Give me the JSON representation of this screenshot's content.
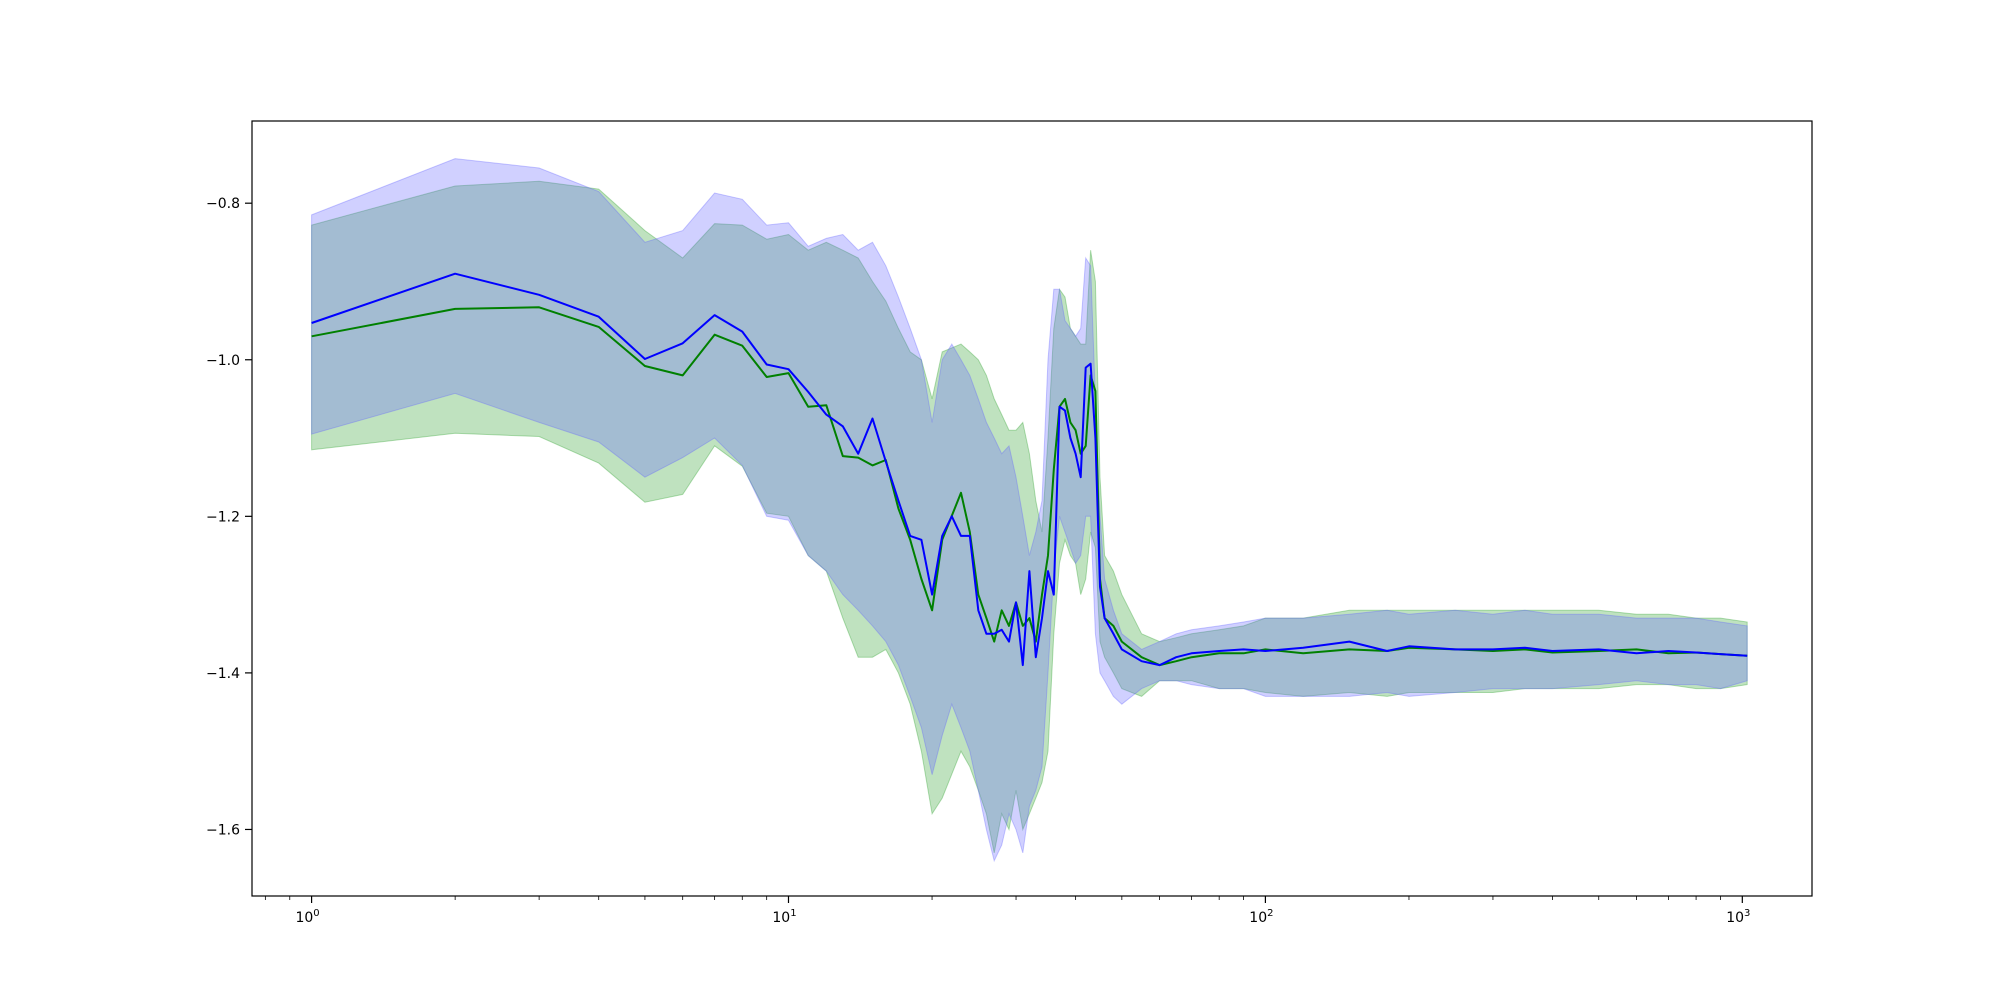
{
  "chart_data": {
    "type": "line",
    "title": "",
    "xlabel": "",
    "ylabel": "",
    "xscale": "log",
    "xlim": [
      0.75,
      1400
    ],
    "ylim": [
      -1.685,
      -0.695
    ],
    "grid": false,
    "legend": "none",
    "x_ticks": [
      {
        "value": 1,
        "base": "10",
        "exp": "0"
      },
      {
        "value": 10,
        "base": "10",
        "exp": "1"
      },
      {
        "value": 100,
        "base": "10",
        "exp": "2"
      },
      {
        "value": 1000,
        "base": "10",
        "exp": "3"
      }
    ],
    "y_ticks": [
      {
        "value": -0.8,
        "label": "−0.8"
      },
      {
        "value": -1.0,
        "label": "−1.0"
      },
      {
        "value": -1.2,
        "label": "−1.2"
      },
      {
        "value": -1.4,
        "label": "−1.4"
      },
      {
        "value": -1.6,
        "label": "−1.6"
      }
    ],
    "series": [
      {
        "color": "#008000",
        "band_color": "#2ca02c",
        "x": [
          1,
          2,
          3,
          4,
          5,
          6,
          7,
          8,
          9,
          10,
          11,
          12,
          13,
          14,
          15,
          16,
          17,
          18,
          19,
          20,
          21,
          23,
          24,
          25,
          26,
          27,
          28,
          29,
          30,
          31,
          32,
          33,
          34,
          35,
          36,
          37,
          38,
          39,
          40,
          41,
          42,
          43,
          44,
          45,
          46,
          48,
          50,
          55,
          60,
          65,
          70,
          80,
          90,
          100,
          120,
          150,
          180,
          200,
          250,
          300,
          350,
          400,
          500,
          600,
          700,
          800,
          900,
          1024
        ],
        "y": [
          -0.97,
          -0.935,
          -0.933,
          -0.958,
          -1.008,
          -1.02,
          -0.968,
          -0.982,
          -1.022,
          -1.017,
          -1.06,
          -1.058,
          -1.123,
          -1.125,
          -1.135,
          -1.128,
          -1.19,
          -1.23,
          -1.28,
          -1.32,
          -1.23,
          -1.17,
          -1.22,
          -1.3,
          -1.33,
          -1.36,
          -1.32,
          -1.34,
          -1.31,
          -1.34,
          -1.33,
          -1.36,
          -1.3,
          -1.25,
          -1.14,
          -1.06,
          -1.05,
          -1.08,
          -1.09,
          -1.12,
          -1.11,
          -1.02,
          -1.04,
          -1.28,
          -1.33,
          -1.34,
          -1.36,
          -1.38,
          -1.39,
          -1.385,
          -1.38,
          -1.375,
          -1.375,
          -1.37,
          -1.375,
          -1.37,
          -1.372,
          -1.368,
          -1.37,
          -1.372,
          -1.37,
          -1.374,
          -1.372,
          -1.37,
          -1.375,
          -1.374,
          -1.376,
          -1.378
        ],
        "upper": [
          -0.828,
          -0.778,
          -0.772,
          -0.782,
          -0.835,
          -0.87,
          -0.826,
          -0.828,
          -0.846,
          -0.84,
          -0.86,
          -0.85,
          -0.86,
          -0.87,
          -0.9,
          -0.925,
          -0.96,
          -0.99,
          -1.0,
          -1.05,
          -0.99,
          -0.98,
          -0.99,
          -1.0,
          -1.02,
          -1.05,
          -1.07,
          -1.09,
          -1.09,
          -1.08,
          -1.12,
          -1.18,
          -1.22,
          -1.1,
          -0.96,
          -0.91,
          -0.92,
          -0.96,
          -0.97,
          -0.98,
          -0.98,
          -0.86,
          -0.9,
          -1.15,
          -1.25,
          -1.27,
          -1.3,
          -1.35,
          -1.36,
          -1.355,
          -1.35,
          -1.345,
          -1.34,
          -1.33,
          -1.33,
          -1.32,
          -1.32,
          -1.32,
          -1.32,
          -1.32,
          -1.32,
          -1.32,
          -1.32,
          -1.325,
          -1.325,
          -1.33,
          -1.33,
          -1.335
        ],
        "lower": [
          -1.115,
          -1.094,
          -1.098,
          -1.132,
          -1.182,
          -1.172,
          -1.11,
          -1.136,
          -1.196,
          -1.2,
          -1.25,
          -1.27,
          -1.33,
          -1.38,
          -1.38,
          -1.37,
          -1.4,
          -1.44,
          -1.5,
          -1.58,
          -1.56,
          -1.5,
          -1.52,
          -1.55,
          -1.58,
          -1.63,
          -1.58,
          -1.6,
          -1.55,
          -1.6,
          -1.58,
          -1.56,
          -1.54,
          -1.5,
          -1.35,
          -1.26,
          -1.23,
          -1.25,
          -1.26,
          -1.3,
          -1.28,
          -1.22,
          -1.24,
          -1.36,
          -1.38,
          -1.4,
          -1.42,
          -1.43,
          -1.41,
          -1.41,
          -1.41,
          -1.42,
          -1.42,
          -1.425,
          -1.43,
          -1.425,
          -1.43,
          -1.425,
          -1.425,
          -1.425,
          -1.42,
          -1.42,
          -1.42,
          -1.415,
          -1.415,
          -1.42,
          -1.42,
          -1.415
        ]
      },
      {
        "color": "#0000ff",
        "band_color": "#6464ff",
        "x": [
          1,
          2,
          3,
          4,
          5,
          6,
          7,
          8,
          9,
          10,
          11,
          12,
          13,
          14,
          15,
          16,
          17,
          18,
          19,
          20,
          21,
          22,
          23,
          24,
          25,
          26,
          27,
          28,
          29,
          30,
          31,
          32,
          33,
          34,
          35,
          36,
          37,
          38,
          39,
          40,
          41,
          42,
          43,
          44,
          45,
          46,
          48,
          50,
          55,
          60,
          65,
          70,
          80,
          90,
          100,
          120,
          150,
          180,
          200,
          250,
          300,
          350,
          400,
          500,
          600,
          700,
          800,
          900,
          1024
        ],
        "y": [
          -0.953,
          -0.89,
          -0.917,
          -0.945,
          -0.999,
          -0.979,
          -0.943,
          -0.964,
          -1.006,
          -1.012,
          -1.041,
          -1.07,
          -1.085,
          -1.12,
          -1.075,
          -1.13,
          -1.18,
          -1.225,
          -1.23,
          -1.3,
          -1.225,
          -1.2,
          -1.225,
          -1.225,
          -1.32,
          -1.35,
          -1.35,
          -1.345,
          -1.36,
          -1.31,
          -1.39,
          -1.27,
          -1.38,
          -1.33,
          -1.27,
          -1.3,
          -1.06,
          -1.065,
          -1.1,
          -1.12,
          -1.15,
          -1.01,
          -1.005,
          -1.1,
          -1.29,
          -1.33,
          -1.35,
          -1.37,
          -1.385,
          -1.39,
          -1.38,
          -1.375,
          -1.372,
          -1.37,
          -1.372,
          -1.368,
          -1.36,
          -1.372,
          -1.366,
          -1.37,
          -1.37,
          -1.368,
          -1.372,
          -1.37,
          -1.375,
          -1.372,
          -1.374,
          -1.376,
          -1.378
        ],
        "upper": [
          -0.815,
          -0.743,
          -0.755,
          -0.785,
          -0.85,
          -0.835,
          -0.787,
          -0.795,
          -0.828,
          -0.825,
          -0.855,
          -0.845,
          -0.84,
          -0.86,
          -0.85,
          -0.88,
          -0.92,
          -0.96,
          -1.0,
          -1.08,
          -1.0,
          -0.98,
          -1.0,
          -1.02,
          -1.05,
          -1.08,
          -1.1,
          -1.12,
          -1.11,
          -1.15,
          -1.2,
          -1.25,
          -1.22,
          -1.18,
          -1.0,
          -0.91,
          -0.91,
          -0.95,
          -0.96,
          -0.97,
          -0.96,
          -0.87,
          -0.88,
          -1.05,
          -1.2,
          -1.28,
          -1.32,
          -1.35,
          -1.37,
          -1.36,
          -1.35,
          -1.345,
          -1.34,
          -1.335,
          -1.33,
          -1.33,
          -1.325,
          -1.32,
          -1.325,
          -1.32,
          -1.325,
          -1.32,
          -1.325,
          -1.325,
          -1.33,
          -1.33,
          -1.33,
          -1.335,
          -1.34
        ],
        "lower": [
          -1.095,
          -1.043,
          -1.08,
          -1.105,
          -1.15,
          -1.125,
          -1.1,
          -1.135,
          -1.2,
          -1.205,
          -1.25,
          -1.27,
          -1.3,
          -1.32,
          -1.34,
          -1.36,
          -1.39,
          -1.43,
          -1.47,
          -1.53,
          -1.48,
          -1.44,
          -1.47,
          -1.5,
          -1.55,
          -1.6,
          -1.64,
          -1.62,
          -1.58,
          -1.6,
          -1.63,
          -1.57,
          -1.55,
          -1.52,
          -1.4,
          -1.27,
          -1.2,
          -1.22,
          -1.24,
          -1.26,
          -1.25,
          -1.2,
          -1.2,
          -1.35,
          -1.4,
          -1.41,
          -1.43,
          -1.44,
          -1.42,
          -1.41,
          -1.41,
          -1.415,
          -1.42,
          -1.42,
          -1.43,
          -1.43,
          -1.43,
          -1.425,
          -1.43,
          -1.425,
          -1.42,
          -1.42,
          -1.42,
          -1.415,
          -1.41,
          -1.415,
          -1.415,
          -1.42,
          -1.41
        ]
      }
    ]
  }
}
